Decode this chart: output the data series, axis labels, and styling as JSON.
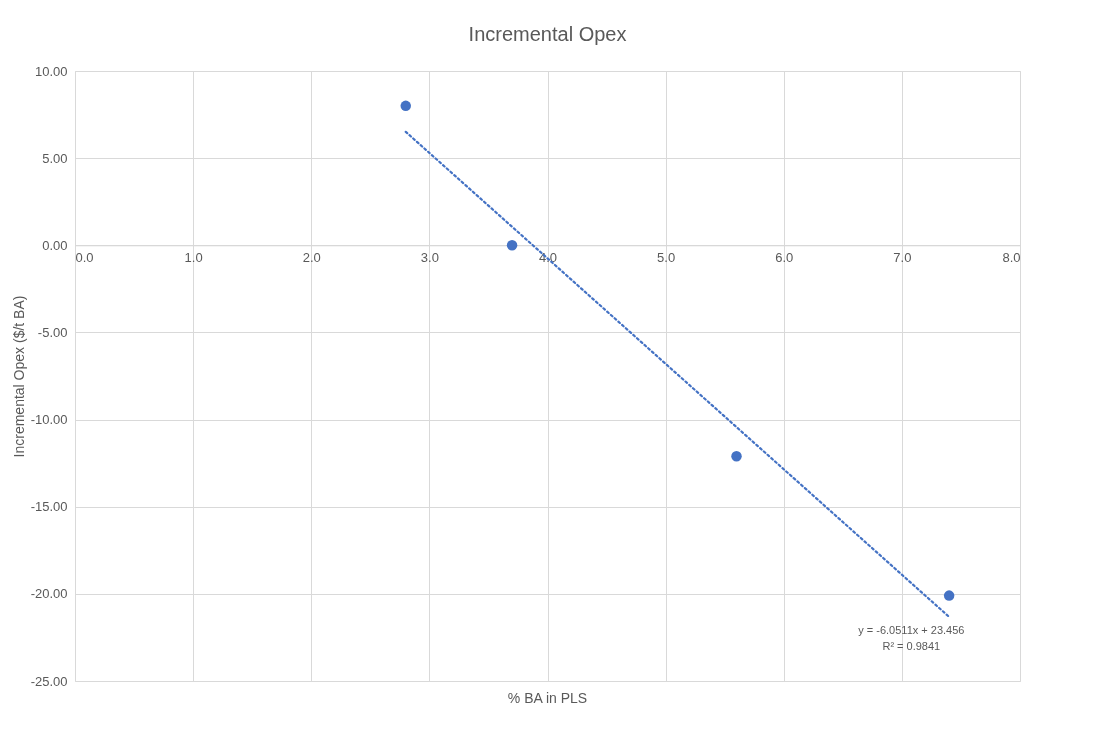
{
  "chart_data": {
    "type": "scatter",
    "title": "Incremental Opex",
    "xlabel": "% BA in PLS",
    "ylabel": "Incremental Opex ($/t BA)",
    "series": [
      {
        "type": "scatter",
        "color": "#4472c4",
        "x": [
          2.8,
          3.7,
          5.6,
          7.4
        ],
        "values": [
          8.0,
          0.0,
          -12.1,
          -20.1
        ],
        "marker": "circle"
      },
      {
        "type": "line",
        "color": "#4472c4",
        "x": [
          2.8,
          7.4
        ],
        "values": [
          6.51,
          -21.32
        ],
        "line_style": "dotted",
        "marker": "none"
      }
    ],
    "annotations": [
      "y = -6.0511x + 23.456",
      "R² = 0.9841"
    ],
    "xlim": [
      0,
      8
    ],
    "ylim": [
      -25,
      10
    ],
    "xticks": [
      {
        "value": 0,
        "label": "0.0"
      },
      {
        "value": 1,
        "label": "1.0"
      },
      {
        "value": 2,
        "label": "2.0"
      },
      {
        "value": 3,
        "label": "3.0"
      },
      {
        "value": 4,
        "label": "4.0"
      },
      {
        "value": 5,
        "label": "5.0"
      },
      {
        "value": 6,
        "label": "6.0"
      },
      {
        "value": 7,
        "label": "7.0"
      },
      {
        "value": 8,
        "label": "8.0"
      }
    ],
    "yticks": [
      {
        "value": -25,
        "label": "-25.00"
      },
      {
        "value": -20,
        "label": "-20.00"
      },
      {
        "value": -15,
        "label": "-15.00"
      },
      {
        "value": -10,
        "label": "-10.00"
      },
      {
        "value": -5,
        "label": "-5.00"
      },
      {
        "value": 0,
        "label": "0.00"
      },
      {
        "value": 5,
        "label": "5.00"
      },
      {
        "value": 10,
        "label": "10.00"
      }
    ],
    "grid": true
  }
}
